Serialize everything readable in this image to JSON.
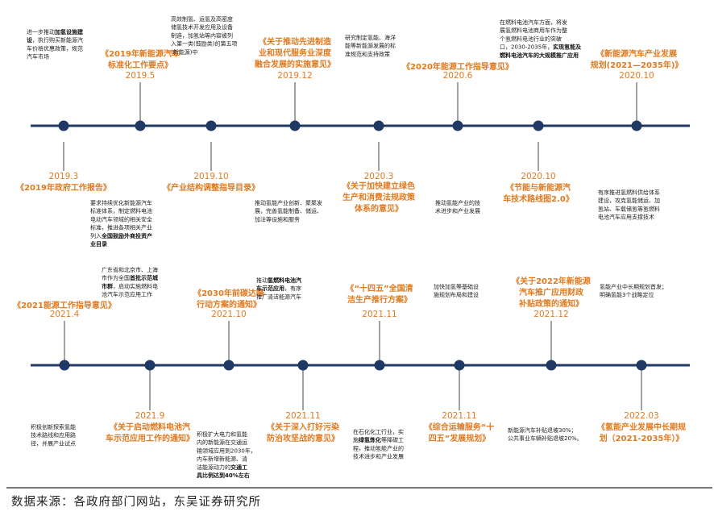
{
  "timeline": {
    "rows": [
      {
        "events": [
          {
            "date": "2019.3",
            "title": [
              "《2019年政府工作报告》"
            ],
            "desc": [
              [
                {
                  "t": "进一步推动"
                },
                {
                  "t": "加氢设施建",
                  "b": true
                }
              ],
              [
                {
                  "t": "设",
                  "b": true
                },
                {
                  "t": "，执行购买新能源汽"
                }
              ],
              [
                {
                  "t": "车价格优惠政策，规范"
                }
              ],
              [
                {
                  "t": "汽车市场"
                }
              ]
            ]
          },
          {
            "date": "2019.5",
            "title": [
              "《2019年新能源汽车",
              "标准化工作要点》"
            ],
            "desc": [
              [
                {
                  "t": "要求持续优化新能源汽车"
                }
              ],
              [
                {
                  "t": "标准体系，制定燃料电池"
                }
              ],
              [
                {
                  "t": "电动汽车领域的相关安全"
                }
              ],
              [
                {
                  "t": "标准，推进各项相关产业"
                }
              ],
              [
                {
                  "t": "列入"
                },
                {
                  "t": "全国鼓励外商投资产",
                  "b": true
                }
              ],
              [
                {
                  "t": "业目录",
                  "b": true
                }
              ]
            ]
          },
          {
            "date": "2019.10",
            "title": [
              "《产业结构调整指导目录》"
            ],
            "desc": [
              [
                {
                  "t": "高效制氢、运氢及高密度"
                }
              ],
              [
                {
                  "t": "储氢技术开发应用及设备"
                }
              ],
              [
                {
                  "t": "制造，加氢站等内容被列"
                }
              ],
              [
                {
                  "t": "入第一类(鼓励类)的第五项"
                }
              ],
              [
                {
                  "t": "(新能源)中"
                }
              ]
            ]
          },
          {
            "date": "2019.12",
            "title": [
              "《关于推动先进制造",
              "业和现代服务业深度",
              "融合发展的实施意见》"
            ],
            "desc": [
              [
                {
                  "t": "推动氢能产业创新、聚聚发"
                }
              ],
              [
                {
                  "t": "展，完善氢能制备、储运、"
                }
              ],
              [
                {
                  "t": "加注等设施和服务"
                }
              ]
            ]
          },
          {
            "date": "2020.3",
            "title": [
              "《关于加快建立绿色",
              "生产和消费法规政策",
              "体系的意见》"
            ],
            "desc": [
              [
                {
                  "t": "研究制定氢能、海洋"
                }
              ],
              [
                {
                  "t": "能等新能源发展的标"
                }
              ],
              [
                {
                  "t": "准规范和支持政策"
                }
              ]
            ]
          },
          {
            "date": "2020.6",
            "title": [
              "《2020年能源工作指导意见》"
            ],
            "desc": [
              [
                {
                  "t": "推动氢能产业的技"
                }
              ],
              [
                {
                  "t": "术进步和产业发展"
                }
              ]
            ]
          },
          {
            "date": "2020.10",
            "title": [
              "《节能与新能源汽",
              "车技术路线图2.0》"
            ],
            "desc": [
              [
                {
                  "t": "在燃料电池汽车方面，将发"
                }
              ],
              [
                {
                  "t": "展氢燃料电池商用车作为整"
                }
              ],
              [
                {
                  "t": "个氢燃料电池行业的突破"
                }
              ],
              [
                {
                  "t": "口，2030-2035年，"
                },
                {
                  "t": "实现氢能及",
                  "b": true
                }
              ],
              [
                {
                  "t": "燃料电池汽车的大规模推广应用",
                  "b": true
                }
              ]
            ]
          },
          {
            "date": "2020.10",
            "title": [
              "《新能源汽车产业发展",
              "规划(2021—2035年)》"
            ],
            "desc": [
              [
                {
                  "t": "有序推进氢燃料供给体系"
                }
              ],
              [
                {
                  "t": "建设，攻克氢能储运、加"
                }
              ],
              [
                {
                  "t": "氢站、车载储氢等氢燃料"
                }
              ],
              [
                {
                  "t": "电池汽车应用支撑技术"
                }
              ]
            ]
          }
        ]
      },
      {
        "events": [
          {
            "date": "2021.4",
            "title": [
              "《2021能源工作指导意见》"
            ],
            "desc": [
              [
                {
                  "t": "积极创新探索氢能"
                }
              ],
              [
                {
                  "t": "技术路线和应用路"
                }
              ],
              [
                {
                  "t": "径，并展产业试点"
                }
              ]
            ]
          },
          {
            "date": "2021.9",
            "title": [
              "《关于启动燃料电池汽",
              "车示范应用工作的通知》"
            ],
            "desc": [
              [
                {
                  "t": "广东省和北京市、上海"
                }
              ],
              [
                {
                  "t": "市作为全国"
                },
                {
                  "t": "首批示范城",
                  "b": true
                }
              ],
              [
                {
                  "t": "市群",
                  "b": true
                },
                {
                  "t": "，启动实施燃料电"
                }
              ],
              [
                {
                  "t": "池汽车示范应用工作"
                }
              ]
            ]
          },
          {
            "date": "2021.10",
            "title": [
              "《2030年前碳达峰",
              "行动方案的通知》"
            ],
            "desc": [
              [
                {
                  "t": "积极扩大电力和氢能"
                }
              ],
              [
                {
                  "t": "内的新能源在交通运"
                }
              ],
              [
                {
                  "t": "输领域应用到2030年，"
                }
              ],
              [
                {
                  "t": "内车新增新能源、清"
                }
              ],
              [
                {
                  "t": "洁能源动力的"
                },
                {
                  "t": "交通工",
                  "b": true
                }
              ],
              [
                {
                  "t": "具比例达到40%左右",
                  "b": true
                }
              ]
            ]
          },
          {
            "date": "2021.11",
            "title": [
              "《关于深入打好污染",
              "防治攻坚战的意见》"
            ],
            "desc": [
              [
                {
                  "t": "推动"
                },
                {
                  "t": "氢燃料电池汽",
                  "b": true
                }
              ],
              [
                {
                  "t": "车示范应用",
                  "b": true
                },
                {
                  "t": "，有序"
                }
              ],
              [
                {
                  "t": "推广清洁能源汽车"
                }
              ]
            ]
          },
          {
            "date": "2021.11",
            "title": [
              "《“十四五”全国清",
              "洁生产推行方案》"
            ],
            "desc": [
              [
                {
                  "t": "在石化化工行业，实"
                }
              ],
              [
                {
                  "t": "施"
                },
                {
                  "t": "绿氢炼化",
                  "b": true
                },
                {
                  "t": "等降碳工"
                }
              ],
              [
                {
                  "t": "程，推动氢能产业的"
                }
              ],
              [
                {
                  "t": "技术进步和产业发展"
                }
              ]
            ]
          },
          {
            "date": "2021.11",
            "title": [
              "《综合运输服务“十",
              "四五”发展规划》"
            ],
            "desc": [
              [
                {
                  "t": "加快加氢等基础设"
                }
              ],
              [
                {
                  "t": "施规划布局和建设"
                }
              ]
            ]
          },
          {
            "date": "2021.12",
            "title": [
              "《关于2022年新能源",
              "汽车推广应用财政",
              "补贴政策的通知》"
            ],
            "desc": [
              [
                {
                  "t": "新能源汽车补贴退坡30%；"
                }
              ],
              [
                {
                  "t": "公共事业车辆补贴退坡20%。"
                }
              ]
            ]
          },
          {
            "date": "2022.03",
            "title": [
              "《氢能产业发展中长期规",
              "划（2021-2035年）》"
            ],
            "desc": [
              [
                {
                  "t": "氢能产业中长期规划首发；"
                }
              ],
              [
                {
                  "t": "明确氢能3个战略定位"
                }
              ]
            ]
          }
        ]
      }
    ]
  },
  "source": "数据来源：各政府部门网站，东吴证券研究所"
}
